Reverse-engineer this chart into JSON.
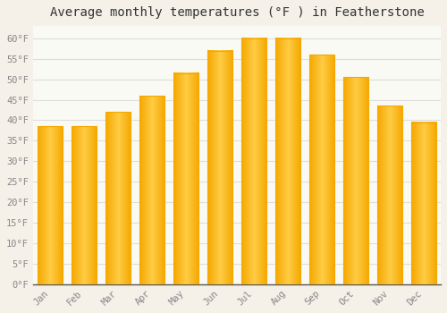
{
  "title": "Average monthly temperatures (°F ) in Featherstone",
  "months": [
    "Jan",
    "Feb",
    "Mar",
    "Apr",
    "May",
    "Jun",
    "Jul",
    "Aug",
    "Sep",
    "Oct",
    "Nov",
    "Dec"
  ],
  "values": [
    38.5,
    38.5,
    42,
    46,
    51.5,
    57,
    60,
    60,
    56,
    50.5,
    43.5,
    39.5
  ],
  "bar_color_center": "#FFCC44",
  "bar_color_edge": "#F5A800",
  "background_color": "#F5F0E8",
  "plot_bg_color": "#FAFAF5",
  "grid_color": "#DDDDDD",
  "title_fontsize": 10,
  "tick_label_color": "#888888",
  "title_color": "#333333",
  "ylim": [
    0,
    63
  ],
  "yticks": [
    0,
    5,
    10,
    15,
    20,
    25,
    30,
    35,
    40,
    45,
    50,
    55,
    60
  ],
  "ytick_labels": [
    "0°F",
    "5°F",
    "10°F",
    "15°F",
    "20°F",
    "25°F",
    "30°F",
    "35°F",
    "40°F",
    "45°F",
    "50°F",
    "55°F",
    "60°F"
  ]
}
